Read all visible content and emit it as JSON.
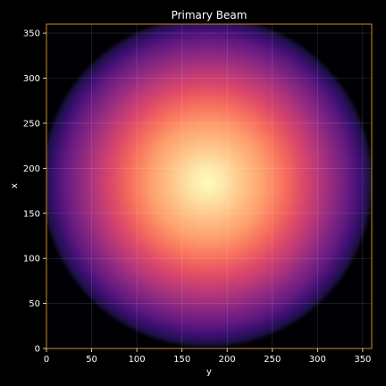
{
  "chart_data": {
    "type": "heatmap",
    "title": "Primary Beam",
    "xlabel": "y",
    "ylabel": "x",
    "xlim": [
      0,
      360
    ],
    "ylim": [
      0,
      360
    ],
    "xticks": [
      0,
      50,
      100,
      150,
      200,
      250,
      300,
      350
    ],
    "yticks": [
      0,
      50,
      100,
      150,
      200,
      250,
      300,
      350
    ],
    "grid": true,
    "colormap": "magma",
    "beam": {
      "center_y": 178,
      "center_x": 185,
      "edge_radius": 185,
      "peak_value": 1.0,
      "edge_value": 0.0
    },
    "colors": {
      "background": "#000000",
      "frame": "#cc8a1a",
      "text": "#ffffff"
    }
  }
}
